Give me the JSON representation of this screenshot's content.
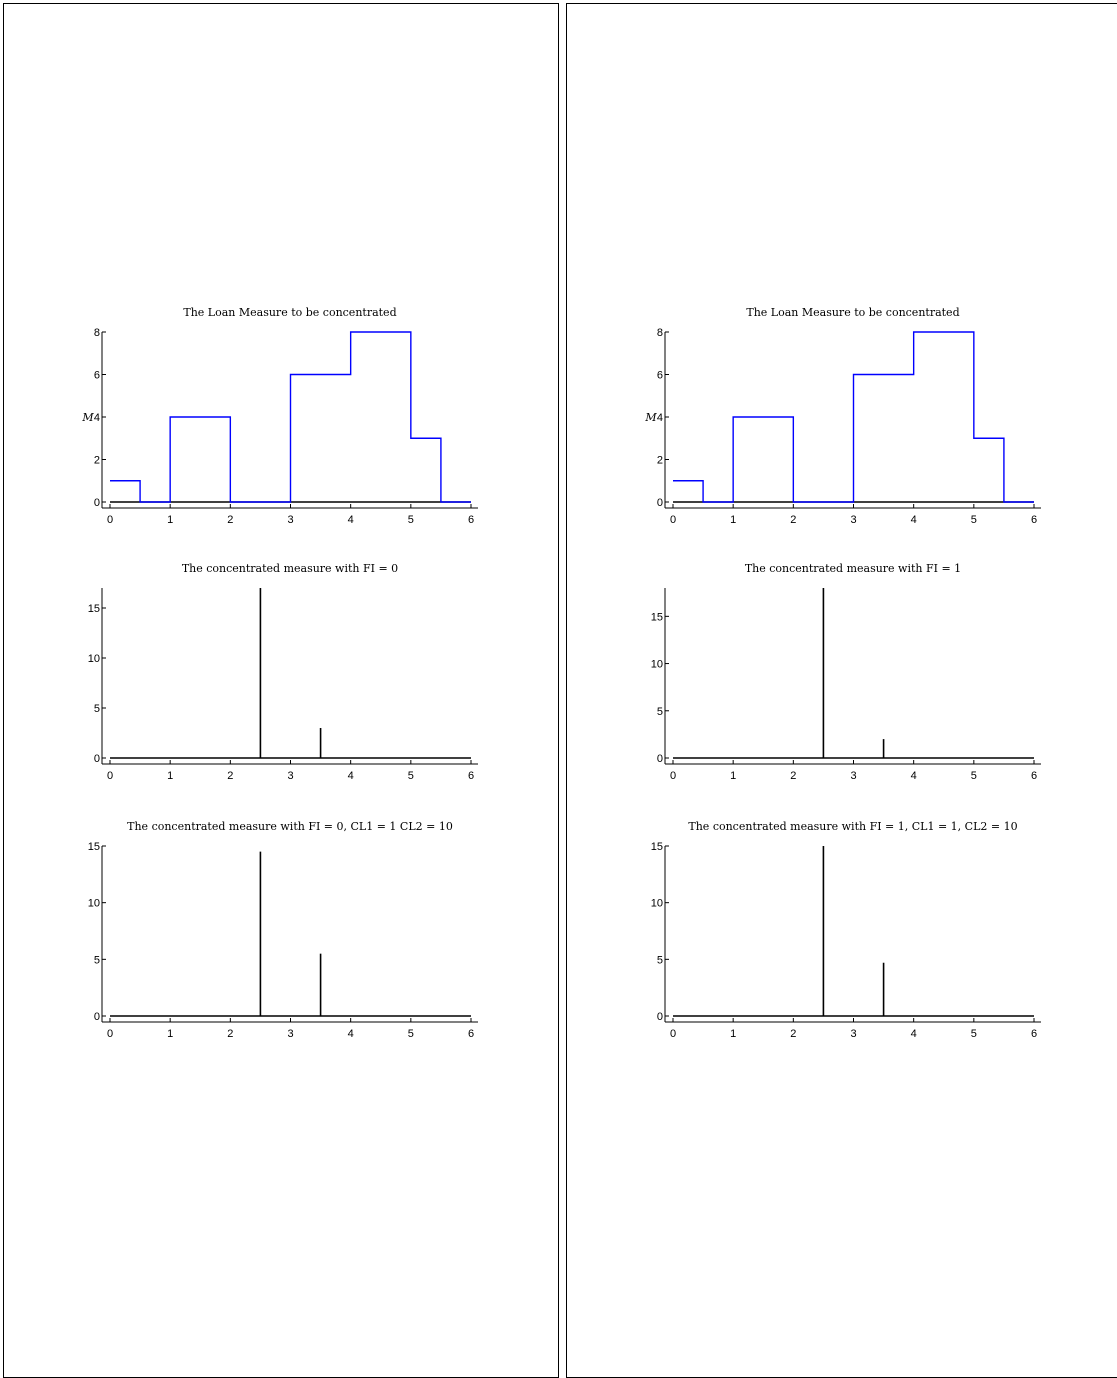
{
  "panels": [
    {
      "charts": [
        {
          "title": "The Loan Measure to be concentrated",
          "type": "line",
          "color": "#0000ff",
          "ylabel": "M",
          "xlim": [
            0,
            6
          ],
          "ylim": [
            0,
            8
          ],
          "xticks": [
            "0",
            "1",
            "2",
            "3",
            "4",
            "5",
            "6"
          ],
          "yticks": [
            "0",
            "2",
            "4",
            "6",
            "8"
          ],
          "x": [
            0,
            0.5,
            0.5,
            1,
            1,
            2,
            2,
            3,
            3,
            4,
            4,
            5,
            5,
            5.5,
            5.5,
            6
          ],
          "y": [
            1,
            1,
            0,
            0,
            4,
            4,
            0,
            0,
            6,
            6,
            8,
            8,
            3,
            3,
            0,
            0
          ]
        },
        {
          "title": "The concentrated measure with FI = 0",
          "type": "bar",
          "color": "#000000",
          "xlim": [
            0,
            6
          ],
          "ylim": [
            0,
            17
          ],
          "xticks": [
            "0",
            "1",
            "2",
            "3",
            "4",
            "5",
            "6"
          ],
          "yticks": [
            "0",
            "5",
            "10",
            "15"
          ],
          "x": [
            2.5,
            3.5
          ],
          "values": [
            17,
            3
          ]
        },
        {
          "title": "The concentrated measure with FI = 0, CL1 = 1 CL2 = 10",
          "type": "bar",
          "color": "#000000",
          "xlim": [
            0,
            6
          ],
          "ylim": [
            0,
            15
          ],
          "xticks": [
            "0",
            "1",
            "2",
            "3",
            "4",
            "5",
            "6"
          ],
          "yticks": [
            "0",
            "5",
            "10",
            "15"
          ],
          "x": [
            2.5,
            3.5
          ],
          "values": [
            14.5,
            5.5
          ]
        }
      ]
    },
    {
      "charts": [
        {
          "title": "The Loan Measure to be concentrated",
          "type": "line",
          "color": "#0000ff",
          "ylabel": "M",
          "xlim": [
            0,
            6
          ],
          "ylim": [
            0,
            8
          ],
          "xticks": [
            "0",
            "1",
            "2",
            "3",
            "4",
            "5",
            "6"
          ],
          "yticks": [
            "0",
            "2",
            "4",
            "6",
            "8"
          ],
          "x": [
            0,
            0.5,
            0.5,
            1,
            1,
            2,
            2,
            3,
            3,
            4,
            4,
            5,
            5,
            5.5,
            5.5,
            6
          ],
          "y": [
            1,
            1,
            0,
            0,
            4,
            4,
            0,
            0,
            6,
            6,
            8,
            8,
            3,
            3,
            0,
            0
          ]
        },
        {
          "title": "The concentrated measure with FI = 1",
          "type": "bar",
          "color": "#000000",
          "xlim": [
            0,
            6
          ],
          "ylim": [
            0,
            18
          ],
          "xticks": [
            "0",
            "1",
            "2",
            "3",
            "4",
            "5",
            "6"
          ],
          "yticks": [
            "0",
            "5",
            "10",
            "15"
          ],
          "x": [
            2.5,
            3.5
          ],
          "values": [
            18,
            2
          ]
        },
        {
          "title": "The concentrated measure with FI = 1, CL1 = 1, CL2 = 10",
          "type": "bar",
          "color": "#000000",
          "xlim": [
            0,
            6
          ],
          "ylim": [
            0,
            15
          ],
          "xticks": [
            "0",
            "1",
            "2",
            "3",
            "4",
            "5",
            "6"
          ],
          "yticks": [
            "0",
            "5",
            "10",
            "15"
          ],
          "x": [
            2.5,
            3.5
          ],
          "values": [
            15,
            4.7
          ]
        }
      ]
    }
  ]
}
